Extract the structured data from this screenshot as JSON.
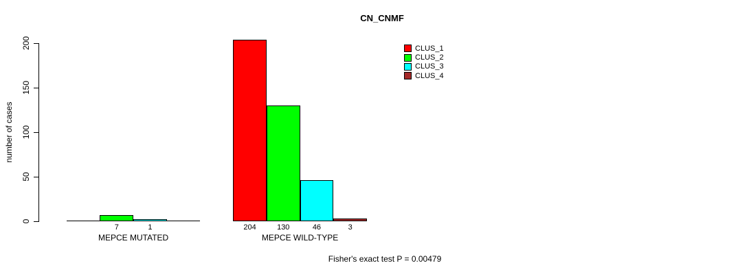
{
  "chart_data": {
    "type": "bar",
    "title": "CN_CNMF",
    "ylabel": "number of cases",
    "ylim": [
      0,
      200
    ],
    "yticks": [
      0,
      50,
      100,
      150,
      200
    ],
    "grid": false,
    "categories": [
      "MEPCE MUTATED",
      "MEPCE WILD-TYPE"
    ],
    "series": [
      {
        "name": "CLUS_1",
        "color": "#ff0000",
        "values": [
          0,
          204
        ]
      },
      {
        "name": "CLUS_2",
        "color": "#00ff00",
        "values": [
          7,
          130
        ]
      },
      {
        "name": "CLUS_3",
        "color": "#00ffff",
        "values": [
          1,
          46
        ]
      },
      {
        "name": "CLUS_4",
        "color": "#a52a2a",
        "values": [
          0,
          3
        ]
      }
    ],
    "bar_value_labels_visible": [
      [
        "7",
        "1"
      ],
      [
        "204",
        "130",
        "46",
        "3"
      ]
    ],
    "zero_bars_drawn_as_flat_line": true,
    "legend": {
      "position": "top-right",
      "entries": [
        "CLUS_1",
        "CLUS_2",
        "CLUS_3",
        "CLUS_4"
      ]
    },
    "annotation": "Fisher's exact test P = 0.00479"
  }
}
